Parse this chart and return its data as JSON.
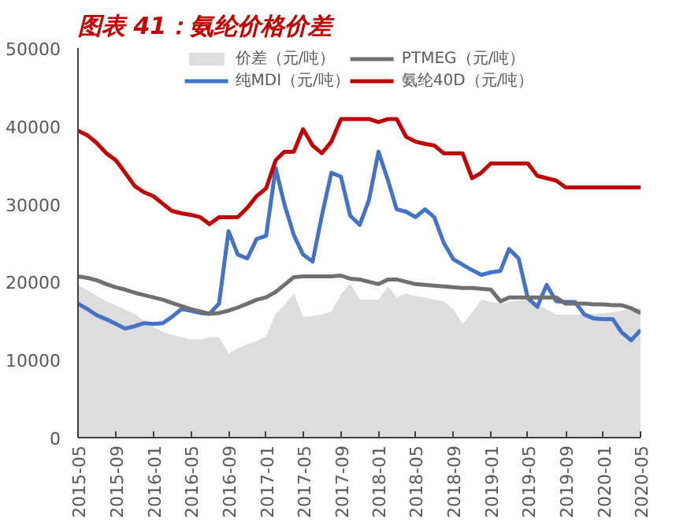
{
  "chart_data": {
    "type": "line",
    "title": "图表 41：氨纶价格价差",
    "x": [
      "2015-05",
      "2015-06",
      "2015-07",
      "2015-08",
      "2015-09",
      "2015-10",
      "2015-11",
      "2015-12",
      "2016-01",
      "2016-02",
      "2016-03",
      "2016-04",
      "2016-05",
      "2016-06",
      "2016-07",
      "2016-08",
      "2016-09",
      "2016-10",
      "2016-11",
      "2016-12",
      "2017-01",
      "2017-02",
      "2017-03",
      "2017-04",
      "2017-05",
      "2017-06",
      "2017-07",
      "2017-08",
      "2017-09",
      "2017-10",
      "2017-11",
      "2017-12",
      "2018-01",
      "2018-02",
      "2018-03",
      "2018-04",
      "2018-05",
      "2018-06",
      "2018-07",
      "2018-08",
      "2018-09",
      "2018-10",
      "2018-11",
      "2018-12",
      "2019-01",
      "2019-02",
      "2019-03",
      "2019-04",
      "2019-05",
      "2019-06",
      "2019-07",
      "2019-08",
      "2019-09",
      "2019-10",
      "2019-11",
      "2019-12",
      "2020-01",
      "2020-02",
      "2020-03",
      "2020-04",
      "2020-05"
    ],
    "series": [
      {
        "name": "价差（元/吨）",
        "type": "area",
        "color": "#dddddd",
        "values": [
          19600,
          18900,
          18200,
          17500,
          17000,
          16400,
          15900,
          15000,
          14200,
          13600,
          13200,
          12900,
          12600,
          12600,
          12900,
          12900,
          10800,
          11500,
          12000,
          12400,
          13000,
          15900,
          17000,
          18500,
          15500,
          15600,
          15800,
          16200,
          18400,
          19800,
          17700,
          17700,
          17700,
          19400,
          18000,
          18500,
          18200,
          18000,
          17700,
          17500,
          16500,
          14600,
          16000,
          17700,
          17400,
          17200,
          17400,
          17600,
          17700,
          17000,
          16500,
          15800,
          15800,
          15800,
          15800,
          15900,
          16000,
          16100,
          16300,
          16500,
          16700
        ]
      },
      {
        "name": "纯MDI（元/吨）",
        "color": "#4472c4",
        "values": [
          17200,
          16500,
          15700,
          15200,
          14600,
          14000,
          14300,
          14700,
          14600,
          14700,
          15500,
          16500,
          16300,
          16000,
          15900,
          17200,
          26500,
          23500,
          23000,
          25500,
          25900,
          34600,
          30000,
          26000,
          23500,
          22600,
          28500,
          34000,
          33500,
          28500,
          27300,
          30500,
          36700,
          33000,
          29300,
          29000,
          28300,
          29300,
          28300,
          25000,
          22900,
          22200,
          21500,
          20900,
          21200,
          21400,
          24200,
          23000,
          17900,
          16800,
          19600,
          17500,
          17400,
          17400,
          15800,
          15300,
          15200,
          15200,
          13500,
          12500,
          13800
        ]
      },
      {
        "name": "PTMEG（元/吨）",
        "color": "#707070",
        "values": [
          20700,
          20500,
          20200,
          19700,
          19300,
          19000,
          18600,
          18300,
          18000,
          17700,
          17300,
          16900,
          16500,
          16200,
          15900,
          16000,
          16300,
          16700,
          17200,
          17700,
          18000,
          18700,
          19600,
          20600,
          20700,
          20700,
          20700,
          20700,
          20800,
          20400,
          20300,
          20000,
          19700,
          20300,
          20300,
          20000,
          19700,
          19600,
          19500,
          19400,
          19300,
          19200,
          19200,
          19100,
          19000,
          17500,
          18000,
          18000,
          18000,
          18000,
          18000,
          18000,
          17200,
          17200,
          17200,
          17100,
          17100,
          17000,
          17000,
          16600,
          16000
        ]
      },
      {
        "name": "氨纶40D（元/吨）",
        "color": "#c00000",
        "values": [
          39400,
          38800,
          37800,
          36500,
          35600,
          34000,
          32300,
          31500,
          31000,
          30000,
          29100,
          28800,
          28600,
          28300,
          27400,
          28300,
          28300,
          28300,
          29500,
          31000,
          32000,
          35600,
          36700,
          36700,
          39600,
          37500,
          36500,
          38000,
          40900,
          40900,
          40900,
          40900,
          40500,
          40900,
          40900,
          38600,
          38000,
          37700,
          37500,
          36500,
          36500,
          36500,
          33300,
          34000,
          35200,
          35200,
          35200,
          35200,
          35200,
          33600,
          33300,
          33000,
          32100,
          32100,
          32100,
          32100,
          32100,
          32100,
          32100,
          32100,
          32100
        ]
      }
    ],
    "xlim": [
      "2015-05",
      "2020-05"
    ],
    "xticks": [
      "2015-05",
      "2015-09",
      "2016-01",
      "2016-05",
      "2016-09",
      "2017-01",
      "2017-05",
      "2017-09",
      "2018-01",
      "2018-05",
      "2018-09",
      "2019-01",
      "2019-05",
      "2019-09",
      "2020-01",
      "2020-05"
    ],
    "ylim": [
      0,
      50000
    ],
    "yticks": [
      0,
      10000,
      20000,
      30000,
      40000,
      50000
    ],
    "legend": "top",
    "grid": false
  }
}
